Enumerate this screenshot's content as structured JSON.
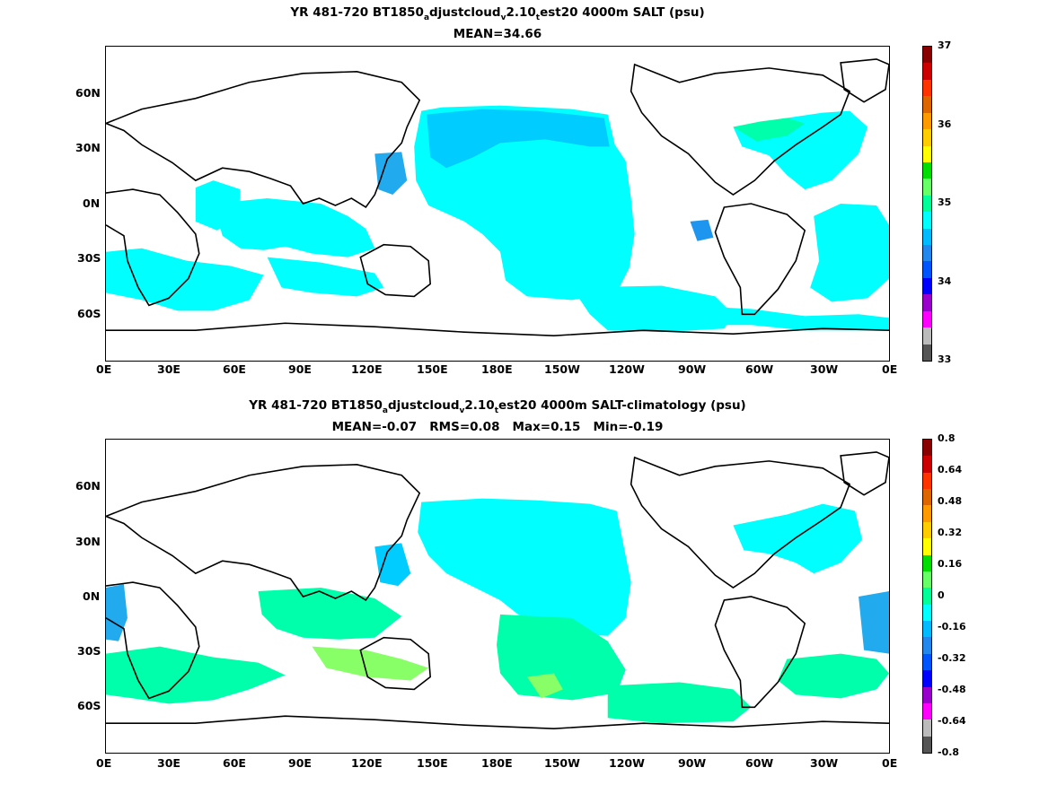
{
  "panels": [
    {
      "title_prefix": "YR 481-720 BT1850",
      "title_sub1": "a",
      "title_mid1": "djustcloud",
      "title_sub2": "v",
      "title_mid2": "2.10",
      "title_sub3": "t",
      "title_suffix": "est20 4000m SALT (psu)",
      "stats": "MEAN=34.66",
      "colorbar_labels": [
        "37",
        "36",
        "35",
        "34",
        "33"
      ]
    },
    {
      "title_prefix": "YR 481-720 BT1850",
      "title_sub1": "a",
      "title_mid1": "djustcloud",
      "title_sub2": "v",
      "title_mid2": "2.10",
      "title_sub3": "t",
      "title_suffix": "est20 4000m SALT-climatology (psu)",
      "stats": "MEAN=-0.07   RMS=0.08   Max=0.15   Min=-0.19",
      "colorbar_labels": [
        "0.8",
        "0.64",
        "0.48",
        "0.32",
        "0.16",
        "0",
        "-0.16",
        "-0.32",
        "-0.48",
        "-0.64",
        "-0.8"
      ]
    }
  ],
  "lon_ticks": [
    "0E",
    "30E",
    "60E",
    "90E",
    "120E",
    "150E",
    "180E",
    "150W",
    "120W",
    "90W",
    "60W",
    "30W",
    "0E"
  ],
  "lat_ticks": [
    "60N",
    "30N",
    "0N",
    "30S",
    "60S"
  ],
  "colorbar_colors": [
    "#555555",
    "#bbbbbb",
    "#ff00ff",
    "#9900cc",
    "#0000ff",
    "#0055ff",
    "#2288ee",
    "#00bbff",
    "#00ffff",
    "#00ff99",
    "#66ff66",
    "#00dd00",
    "#ffff00",
    "#ffcc00",
    "#ff9900",
    "#dd6600",
    "#ff3300",
    "#cc0000",
    "#880000"
  ],
  "fill_colors": {
    "cyan": "#00ffff",
    "light_blue": "#00ccff",
    "mid_blue": "#1e96f0",
    "aqua_green": "#00ffaa",
    "light_green": "#88ff66"
  }
}
